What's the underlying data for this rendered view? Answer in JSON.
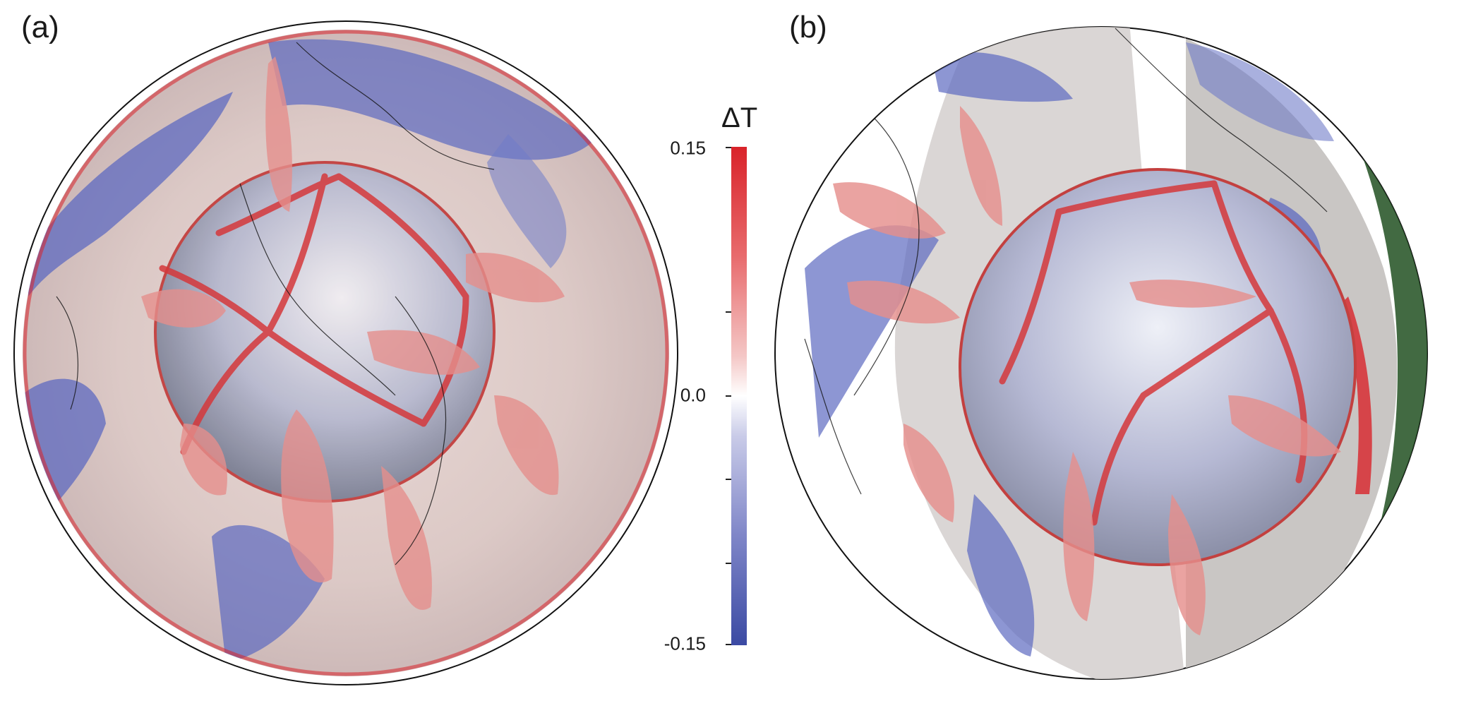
{
  "panels": [
    {
      "label": "(a)"
    },
    {
      "label": "(b)"
    }
  ],
  "colorbar": {
    "title": "ΔT",
    "ticks": [
      "0.15",
      "0.0",
      "-0.15"
    ],
    "colors": {
      "max": "#d9232a",
      "mid": "#ffffff",
      "min": "#3b4aa3"
    }
  },
  "colors": {
    "hot_plume": "#e58f8c",
    "hot_core": "#d5383b",
    "cold_slab": "#5d6ac0",
    "mantle_gray": "#c9c6c4",
    "velocity_vectors": "#2e5a2e"
  }
}
